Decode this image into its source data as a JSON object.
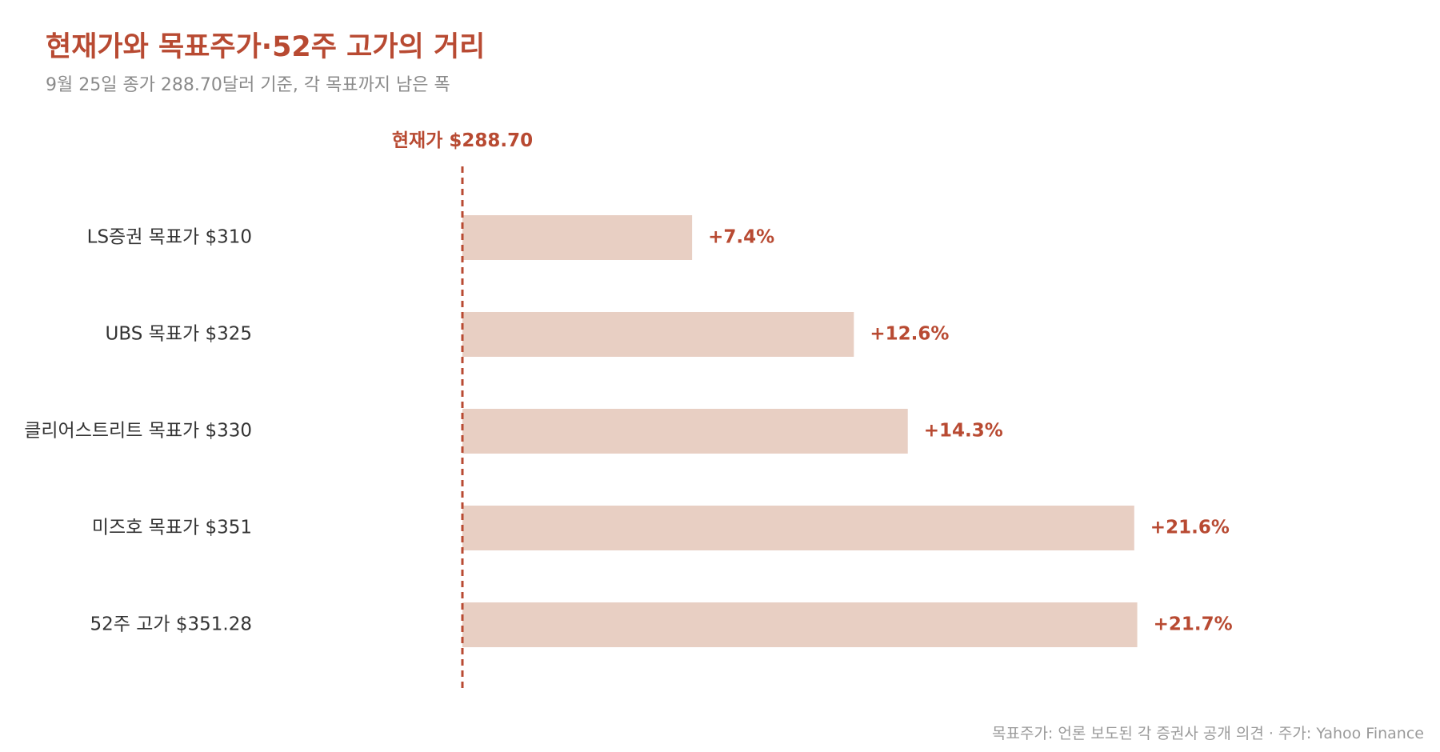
{
  "title": "현재가와 목표주가·52주 고가의 거리",
  "subtitle": "9월 25일 종가 288.70달러 기준, 각 목표까지 남은 폭",
  "footer": "목표주가: 언론 보도된 각 증권사 공개 의견 · 주가: Yahoo Finance",
  "colors": {
    "accent": "#b84a32",
    "bar": "#e8cfc3",
    "label": "#333333",
    "muted": "#8a8a8a"
  },
  "chart_data": {
    "type": "bar",
    "orientation": "horizontal",
    "baseline": 288.7,
    "baseline_label": "현재가 $288.70",
    "categories": [
      "LS증권 목표가 $310",
      "UBS 목표가 $325",
      "클리어스트리트 목표가 $330",
      "미즈호 목표가 $351",
      "52주 고가 $351.28"
    ],
    "values": [
      310,
      325,
      330,
      351,
      351.28
    ],
    "data_labels": [
      "+7.4%",
      "+12.6%",
      "+14.3%",
      "+21.6%",
      "+21.7%"
    ],
    "xlim": [
      288.7,
      366
    ]
  }
}
